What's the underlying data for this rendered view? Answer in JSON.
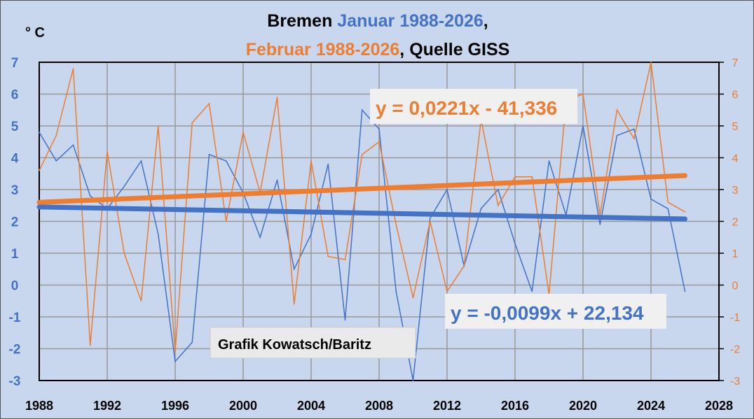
{
  "chart_data": {
    "type": "line",
    "title_parts": [
      {
        "text": "Bremen ",
        "color": "#000000"
      },
      {
        "text": "Januar  1988-2026",
        "color": "#4472c4"
      },
      {
        "text": ",",
        "color": "#000000"
      }
    ],
    "title_line2_parts": [
      {
        "text": "Februar 1988-2026",
        "color": "#ed7d31"
      },
      {
        "text": ", Quelle GISS",
        "color": "#000000"
      }
    ],
    "ylabel": "° C",
    "credit": "Grafik Kowatsch/Baritz",
    "xlim": [
      1988,
      2028
    ],
    "ylim": [
      -3,
      7
    ],
    "xticks": [
      1988,
      1992,
      1996,
      2000,
      2004,
      2008,
      2012,
      2016,
      2020,
      2024,
      2028
    ],
    "yticks": [
      -3,
      -2,
      -1,
      0,
      1,
      2,
      3,
      4,
      5,
      6,
      7
    ],
    "grid": true,
    "x": [
      1988,
      1989,
      1990,
      1991,
      1992,
      1993,
      1994,
      1995,
      1996,
      1997,
      1998,
      1999,
      2000,
      2001,
      2002,
      2003,
      2004,
      2005,
      2006,
      2007,
      2008,
      2009,
      2010,
      2011,
      2012,
      2013,
      2014,
      2015,
      2016,
      2017,
      2018,
      2019,
      2020,
      2021,
      2022,
      2023,
      2024,
      2025,
      2026
    ],
    "series": [
      {
        "name": "Januar",
        "color": "#4472c4",
        "values": [
          4.8,
          3.9,
          4.4,
          2.8,
          2.4,
          3.1,
          3.9,
          1.6,
          -2.4,
          -1.8,
          4.1,
          3.9,
          2.9,
          1.5,
          3.3,
          0.5,
          1.6,
          3.8,
          -1.1,
          5.5,
          4.9,
          -0.2,
          -3.0,
          2.1,
          3.0,
          0.6,
          2.4,
          3.0,
          1.3,
          -0.2,
          3.9,
          2.2,
          5.0,
          1.9,
          4.7,
          4.9,
          2.7,
          2.4,
          -0.2
        ],
        "trend": {
          "slope": -0.0099,
          "intercept": 22.134,
          "label": "y = -0,0099x + 22,134"
        }
      },
      {
        "name": "Februar",
        "color": "#ed7d31",
        "values": [
          3.6,
          4.7,
          6.8,
          -1.9,
          4.2,
          1.0,
          -0.5,
          5.0,
          -2.1,
          5.1,
          5.7,
          2.0,
          4.8,
          2.9,
          5.9,
          -0.6,
          3.9,
          0.9,
          0.8,
          4.1,
          4.5,
          1.9,
          -0.4,
          2.0,
          -0.2,
          0.6,
          5.2,
          2.5,
          3.4,
          3.4,
          -0.3,
          5.8,
          6.0,
          2.2,
          5.5,
          4.6,
          7.0,
          2.6,
          2.3
        ],
        "trend": {
          "slope": 0.0221,
          "intercept": -41.336,
          "label": "y = 0,0221x - 41,336"
        }
      }
    ]
  }
}
